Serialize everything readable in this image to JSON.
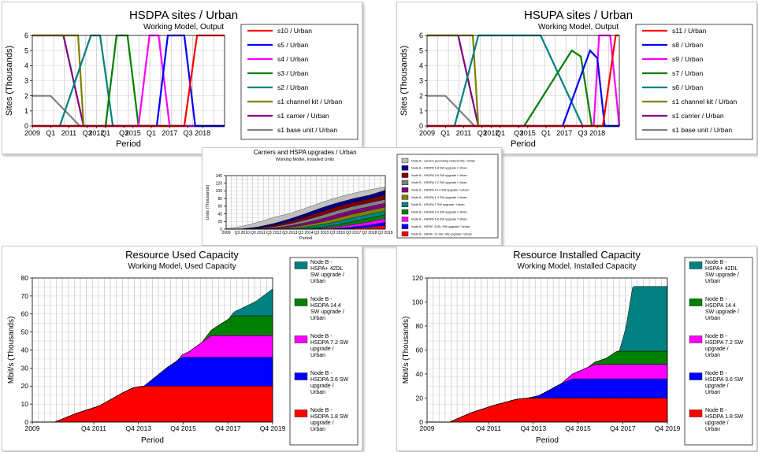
{
  "colors": {
    "red": "#ff0000",
    "blue": "#0000ff",
    "magenta": "#ff00ff",
    "green": "#008000",
    "teal": "#008080",
    "olive": "#808000",
    "purple": "#800080",
    "gray": "#808080",
    "darkblue": "#000080",
    "darkred": "#800000",
    "silver": "#c0c0c0"
  },
  "chart_data": [
    {
      "type": "line",
      "title": "HSDPA sites / Urban",
      "subtitle": "Working Model, Output",
      "xlabel": "Period",
      "ylabel": "Sites  (Thousands)",
      "ylim": [
        0,
        6
      ],
      "yticks": [
        0,
        1,
        2,
        3,
        4,
        5,
        6
      ],
      "xlim": [
        2009,
        2019.5
      ],
      "xticks": [
        {
          "v": 2009,
          "label": "2009"
        },
        {
          "v": 2010,
          "label": "Q1"
        },
        {
          "v": 2011,
          "label": "2011"
        },
        {
          "v": 2012,
          "label": "Q3"
        },
        {
          "v": 2012.5,
          "label": "2012"
        },
        {
          "v": 2013,
          "label": "Q1"
        },
        {
          "v": 2014,
          "label": "Q3"
        },
        {
          "v": 2014.5,
          "label": "2015"
        },
        {
          "v": 2015.5,
          "label": "Q1"
        },
        {
          "v": 2016.5,
          "label": "2017"
        },
        {
          "v": 2017.5,
          "label": "Q3"
        },
        {
          "v": 2018.3,
          "label": "2018"
        }
      ],
      "series": [
        {
          "name": "s10 / Urban",
          "color": "#ff0000",
          "x": [
            2009,
            2017.3,
            2018,
            2019.5
          ],
          "y": [
            0,
            0,
            6,
            6
          ]
        },
        {
          "name": "s5 / Urban",
          "color": "#0000ff",
          "x": [
            2009,
            2015.8,
            2016.4,
            2017.3,
            2017.9,
            2019.5
          ],
          "y": [
            0,
            0,
            6,
            6,
            0,
            0
          ]
        },
        {
          "name": "s4 / Urban",
          "color": "#ff00ff",
          "x": [
            2009,
            2014.8,
            2015.4,
            2015.9,
            2016.5,
            2019.5
          ],
          "y": [
            0,
            0,
            6,
            6,
            0,
            0
          ]
        },
        {
          "name": "s3 / Urban",
          "color": "#008000",
          "x": [
            2009,
            2013.0,
            2013.6,
            2014.2,
            2014.8,
            2019.5
          ],
          "y": [
            0,
            0,
            6,
            6,
            0,
            0
          ]
        },
        {
          "name": "s2 / Urban",
          "color": "#008080",
          "x": [
            2009,
            2010.5,
            2012.2,
            2012.7,
            2013.4,
            2019.5
          ],
          "y": [
            0,
            0,
            6,
            6,
            0,
            0
          ]
        },
        {
          "name": "s1 channel kit / Urban",
          "color": "#808000",
          "x": [
            2009,
            2011.5,
            2011.8,
            2019.5
          ],
          "y": [
            6,
            6,
            0,
            0
          ]
        },
        {
          "name": "s1 carrier / Urban",
          "color": "#800080",
          "x": [
            2009,
            2010.7,
            2011.8,
            2019.5
          ],
          "y": [
            6,
            6,
            0,
            0
          ]
        },
        {
          "name": "s1 base unit / Urban",
          "color": "#808080",
          "x": [
            2009,
            2010.0,
            2011.6,
            2019.5
          ],
          "y": [
            2,
            2,
            0,
            0
          ]
        }
      ]
    },
    {
      "type": "line",
      "title": "HSUPA sites / Urban",
      "subtitle": "Working Model, Output",
      "xlabel": "Period",
      "ylabel": "Sites  (Thousands)",
      "ylim": [
        0,
        6
      ],
      "yticks": [
        0,
        1,
        2,
        3,
        4,
        5,
        6
      ],
      "xlim": [
        2009,
        2019.5
      ],
      "xticks": [
        {
          "v": 2009,
          "label": "2009"
        },
        {
          "v": 2010,
          "label": "Q1"
        },
        {
          "v": 2011,
          "label": "2011"
        },
        {
          "v": 2012,
          "label": "Q3"
        },
        {
          "v": 2012.5,
          "label": "2012"
        },
        {
          "v": 2013,
          "label": "Q1"
        },
        {
          "v": 2014,
          "label": "Q3"
        },
        {
          "v": 2014.5,
          "label": "2015"
        },
        {
          "v": 2015.5,
          "label": "Q1"
        },
        {
          "v": 2016.5,
          "label": "2017"
        },
        {
          "v": 2017.5,
          "label": "Q3"
        },
        {
          "v": 2018.3,
          "label": "2018"
        }
      ],
      "series": [
        {
          "name": "s11 / Urban",
          "color": "#ff0000",
          "x": [
            2009,
            2018.6,
            2019.3,
            2019.5
          ],
          "y": [
            0,
            0,
            6,
            6
          ]
        },
        {
          "name": "s8 / Urban",
          "color": "#0000ff",
          "x": [
            2009,
            2016.4,
            2017.9,
            2018.3,
            2018.7,
            2019.5
          ],
          "y": [
            0,
            0,
            5,
            4.5,
            0,
            0
          ]
        },
        {
          "name": "s9 / Urban",
          "color": "#ff00ff",
          "x": [
            2009,
            2018.1,
            2018.4,
            2019.0,
            2019.5
          ],
          "y": [
            0,
            0,
            6,
            6,
            0
          ]
        },
        {
          "name": "s7 / Urban",
          "color": "#008000",
          "x": [
            2009,
            2014.3,
            2016.9,
            2017.4,
            2018.0,
            2019.5
          ],
          "y": [
            0,
            0,
            5,
            4.6,
            0,
            0
          ]
        },
        {
          "name": "s6 / Urban",
          "color": "#008080",
          "x": [
            2009,
            2010.5,
            2011.8,
            2015.2,
            2017.5,
            2019.5
          ],
          "y": [
            0,
            0,
            6,
            6,
            0,
            0
          ]
        },
        {
          "name": "s1 channel kit / Urban",
          "color": "#808000",
          "x": [
            2009,
            2011.5,
            2011.8,
            2019.5
          ],
          "y": [
            6,
            6,
            0,
            0
          ]
        },
        {
          "name": "s1 carrier / Urban",
          "color": "#800080",
          "x": [
            2009,
            2010.7,
            2011.8,
            2019.5
          ],
          "y": [
            6,
            6,
            0,
            0
          ]
        },
        {
          "name": "s1 base unit / Urban",
          "color": "#808080",
          "x": [
            2009,
            2010.0,
            2011.6,
            2019.5
          ],
          "y": [
            2,
            2,
            0,
            0
          ]
        }
      ]
    },
    {
      "type": "area",
      "title": "Carriers and HSPA upgrades / Urban",
      "subtitle": "Working Model, Installed Units",
      "xlabel": "Period",
      "ylabel": "Units  (Thousands)",
      "ylim": [
        0,
        140
      ],
      "yticks": [
        0,
        20,
        40,
        60,
        80,
        100,
        120,
        140
      ],
      "x": [
        2009,
        2010,
        2011,
        2012,
        2013,
        2014,
        2015,
        2016,
        2017,
        2018,
        2019
      ],
      "xtick_labels": [
        "2009",
        "Q3 2010",
        "Q3 2011",
        "Q3 2012",
        "Q3 2013",
        "Q3 2014",
        "Q3 2015",
        "Q3 2016",
        "Q3 2017",
        "Q3 2018",
        "Q3 2019"
      ],
      "series": [
        {
          "name": "Node B - HSPA+ 11.0UL SW upgrade / Urban",
          "color": "#ff0000",
          "values": [
            0,
            0,
            0,
            0,
            0,
            0,
            0,
            0,
            2,
            5,
            10
          ]
        },
        {
          "name": "Node B - HSPA+ 42DL SW upgrade / Urban",
          "color": "#0000ff",
          "values": [
            0,
            0,
            0,
            0,
            0,
            0,
            0,
            2,
            4,
            6,
            8
          ]
        },
        {
          "name": "Node B - HSDPA 5.8 SW upgrade / Urban",
          "color": "#ff00ff",
          "values": [
            0,
            0,
            0,
            0,
            0,
            0,
            2,
            4,
            6,
            8,
            10
          ]
        },
        {
          "name": "Node B - HSUPA 2.9 SW upgrade / Urban",
          "color": "#008000",
          "values": [
            0,
            0,
            0,
            0,
            0,
            2,
            4,
            6,
            8,
            10,
            10
          ]
        },
        {
          "name": "Node B - HSUPA 2 SW upgrade / Urban",
          "color": "#008080",
          "values": [
            0,
            0,
            0,
            0,
            2,
            4,
            6,
            8,
            10,
            10,
            10
          ]
        },
        {
          "name": "Node B - HSUPA 1.4 SW upgrade / Urban",
          "color": "#808000",
          "values": [
            0,
            0,
            0,
            1,
            3,
            5,
            7,
            9,
            10,
            10,
            10
          ]
        },
        {
          "name": "Node B - HSDPA 14.4 SW upgrade / Urban",
          "color": "#800080",
          "values": [
            0,
            0,
            0,
            2,
            4,
            6,
            8,
            10,
            10,
            10,
            10
          ]
        },
        {
          "name": "Node B - HSDPA 7.2 SW upgrade / Urban",
          "color": "#808080",
          "values": [
            0,
            0,
            1,
            3,
            5,
            7,
            9,
            10,
            10,
            10,
            10
          ]
        },
        {
          "name": "Node B - HSDPA 3.6 SW upgrade / Urban",
          "color": "#800000",
          "values": [
            0,
            0,
            2,
            4,
            6,
            8,
            10,
            10,
            10,
            10,
            12
          ]
        },
        {
          "name": "Node B - HSDPA 1.8 SW upgrade / Urban",
          "color": "#000080",
          "values": [
            0,
            1,
            3,
            5,
            7,
            9,
            10,
            10,
            10,
            10,
            12
          ]
        },
        {
          "name": "Node B - carriers (excluding channel kit) / Urban",
          "color": "#c0c0c0",
          "values": [
            2,
            6,
            12,
            16,
            14,
            14,
            14,
            14,
            14,
            14,
            8
          ]
        }
      ]
    },
    {
      "type": "area",
      "title": "Resource Used Capacity",
      "subtitle": "Working Model, Used Capacity",
      "xlabel": "Period",
      "ylabel": "Mbit/s  (Thousands)",
      "ylim": [
        0,
        80
      ],
      "yticks": [
        0,
        10,
        20,
        30,
        40,
        50,
        60,
        70,
        80
      ],
      "xlim": [
        2009,
        2019.75
      ],
      "xticks": [
        {
          "v": 2009,
          "label": "2009"
        },
        {
          "v": 2011.75,
          "label": "Q4 2011"
        },
        {
          "v": 2013.75,
          "label": "Q4 2013"
        },
        {
          "v": 2015.75,
          "label": "Q4 2015"
        },
        {
          "v": 2017.75,
          "label": "Q4 2017"
        },
        {
          "v": 2019.75,
          "label": "Q4 2019"
        }
      ],
      "series": [
        {
          "name": "Node B - HSDPA 1.8 SW upgrade / Urban",
          "color": "#ff0000",
          "x": [
            2010,
            2011,
            2012,
            2013,
            2013.5,
            2014,
            2019.75
          ],
          "y": [
            0,
            5,
            9,
            16,
            19,
            20,
            20
          ]
        },
        {
          "name": "Node B - HSDPA 3.6 SW upgrade / Urban",
          "color": "#0000ff",
          "x": [
            2013,
            2013.5,
            2014,
            2015,
            2015.7,
            2019.75
          ],
          "y": [
            0,
            0,
            0,
            10,
            16,
            16
          ]
        },
        {
          "name": "Node B - HSDPA 7.2 SW upgrade / Urban",
          "color": "#ff00ff",
          "x": [
            2015.5,
            2016,
            2017,
            2019.75
          ],
          "y": [
            0,
            3,
            12,
            12
          ]
        },
        {
          "name": "Node B - HSDPA 14.4 SW upgrade / Urban",
          "color": "#008000",
          "x": [
            2016.6,
            2017,
            2018,
            2019.75
          ],
          "y": [
            0,
            3,
            11,
            11
          ]
        },
        {
          "name": "Node B - HSPA+ 42DL SW upgrade / Urban",
          "color": "#008080",
          "x": [
            2017.8,
            2018,
            2019,
            2019.75
          ],
          "y": [
            0,
            2,
            8,
            15
          ]
        }
      ]
    },
    {
      "type": "area",
      "title": "Resource Installed Capacity",
      "subtitle": "Working Model, Installed Capacity",
      "xlabel": "Period",
      "ylabel": "Mbit/s  (Thousands)",
      "ylim": [
        0,
        120
      ],
      "yticks": [
        0,
        20,
        40,
        60,
        80,
        100,
        120
      ],
      "xlim": [
        2009,
        2019.75
      ],
      "xticks": [
        {
          "v": 2009,
          "label": "2009"
        },
        {
          "v": 2011.75,
          "label": "Q4 2011"
        },
        {
          "v": 2013.75,
          "label": "Q4 2013"
        },
        {
          "v": 2015.75,
          "label": "Q4 2015"
        },
        {
          "v": 2017.75,
          "label": "Q4 2017"
        },
        {
          "v": 2019.75,
          "label": "Q4 2019"
        }
      ],
      "series": [
        {
          "name": "Node B - HSDPA 1.8 SW upgrade / Urban",
          "color": "#ff0000",
          "x": [
            2010,
            2011,
            2012,
            2013,
            2013.5,
            2019.75
          ],
          "y": [
            0,
            8,
            14,
            19,
            20,
            20
          ]
        },
        {
          "name": "Node B - HSDPA 3.6 SW upgrade / Urban",
          "color": "#0000ff",
          "x": [
            2013.5,
            2014,
            2015,
            2015.5,
            2019.75
          ],
          "y": [
            0,
            2,
            12,
            16,
            16
          ]
        },
        {
          "name": "Node B - HSDPA 7.2 SW upgrade / Urban",
          "color": "#ff00ff",
          "x": [
            2015,
            2016,
            2016.5,
            2019.75
          ],
          "y": [
            0,
            8,
            12,
            12
          ]
        },
        {
          "name": "Node B - HSDPA 14.4 SW upgrade / Urban",
          "color": "#008000",
          "x": [
            2016.2,
            2017,
            2017.5,
            2019.75
          ],
          "y": [
            0,
            5,
            11,
            11
          ]
        },
        {
          "name": "Node B - HSPA+ 42DL SW upgrade / Urban",
          "color": "#008080",
          "x": [
            2017.6,
            2017.9,
            2018.2,
            2019.75
          ],
          "y": [
            0,
            20,
            54,
            54
          ]
        }
      ]
    }
  ]
}
